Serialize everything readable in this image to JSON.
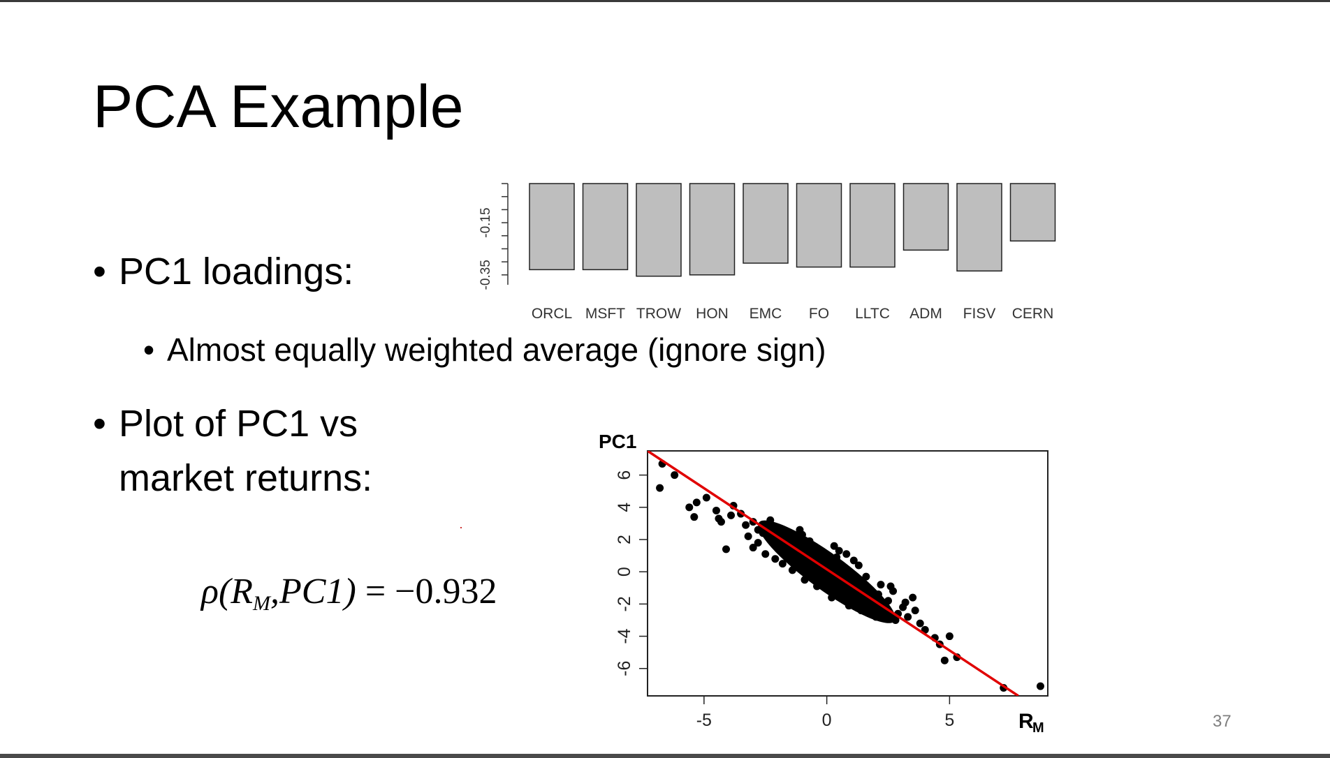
{
  "slide": {
    "title": "PCA Example",
    "bullet_loadings": "PC1 loadings:",
    "sub_bullet": "Almost equally weighted average (ignore sign)",
    "bullet_plot_line1": "Plot of PC1 vs",
    "bullet_plot_line2": "market returns:",
    "bullet_glyph": "•",
    "formula": {
      "rho": "ρ(R",
      "sub": "M",
      "rest": ",PC1)",
      "equals": " = −0.932"
    },
    "page_number": "37"
  },
  "chart_data": [
    {
      "type": "bar",
      "title": "",
      "categories": [
        "ORCL",
        "MSFT",
        "TROW",
        "HON",
        "EMC",
        "FO",
        "LLTC",
        "ADM",
        "FISV",
        "CERN"
      ],
      "values": [
        -0.33,
        -0.33,
        -0.355,
        -0.35,
        -0.305,
        -0.32,
        -0.32,
        -0.255,
        -0.335,
        -0.22
      ],
      "ytick_labels": [
        "-0.15",
        "-0.35"
      ],
      "ylim": [
        -0.42,
        0.0
      ],
      "bar_color": "#bebebe"
    },
    {
      "type": "scatter",
      "xlabel": "R",
      "xlabel_sub": "M",
      "ylabel": "PC1",
      "xticks": [
        "-5",
        "0",
        "5"
      ],
      "yticks": [
        "-6",
        "-4",
        "-2",
        "0",
        "2",
        "4",
        "6"
      ],
      "xlim": [
        -7.3,
        9.0
      ],
      "ylim": [
        -7.7,
        7.5
      ],
      "point_color": "#000000",
      "fit_line": {
        "color": "#e00000",
        "x": [
          -7.3,
          7.8
        ],
        "y": [
          7.5,
          -7.7
        ]
      },
      "points": [
        [
          -6.7,
          6.7
        ],
        [
          -6.8,
          5.2
        ],
        [
          -6.2,
          6.0
        ],
        [
          -5.6,
          4.0
        ],
        [
          -5.3,
          4.3
        ],
        [
          -5.4,
          3.4
        ],
        [
          -4.9,
          4.6
        ],
        [
          -4.5,
          3.8
        ],
        [
          -4.3,
          3.1
        ],
        [
          -3.9,
          3.5
        ],
        [
          -4.4,
          3.3
        ],
        [
          -3.8,
          4.1
        ],
        [
          -4.1,
          1.4
        ],
        [
          -3.5,
          3.6
        ],
        [
          -3.3,
          2.9
        ],
        [
          -3.2,
          2.2
        ],
        [
          -3.0,
          3.1
        ],
        [
          -2.8,
          2.6
        ],
        [
          -2.6,
          2.4
        ],
        [
          -2.3,
          3.2
        ],
        [
          -2.1,
          2.0
        ],
        [
          -1.9,
          2.5
        ],
        [
          -1.7,
          1.6
        ],
        [
          -2.5,
          1.1
        ],
        [
          -2.1,
          0.8
        ],
        [
          -1.5,
          2.2
        ],
        [
          -1.2,
          1.0
        ],
        [
          -1.3,
          1.8
        ],
        [
          -1.0,
          2.3
        ],
        [
          -0.8,
          0.4
        ],
        [
          -0.6,
          1.5
        ],
        [
          -0.5,
          0.6
        ],
        [
          -0.3,
          1.2
        ],
        [
          -0.2,
          -0.2
        ],
        [
          0.0,
          0.8
        ],
        [
          0.1,
          0.2
        ],
        [
          0.3,
          -0.5
        ],
        [
          0.4,
          0.9
        ],
        [
          0.6,
          -0.2
        ],
        [
          0.7,
          -1.0
        ],
        [
          0.9,
          -0.4
        ],
        [
          1.0,
          -1.4
        ],
        [
          1.2,
          -0.8
        ],
        [
          1.3,
          0.4
        ],
        [
          1.5,
          -1.6
        ],
        [
          1.7,
          -1.1
        ],
        [
          1.9,
          -2.0
        ],
        [
          2.1,
          -1.4
        ],
        [
          2.3,
          -2.3
        ],
        [
          2.5,
          -1.8
        ],
        [
          2.7,
          -1.2
        ],
        [
          2.9,
          -2.6
        ],
        [
          3.1,
          -2.2
        ],
        [
          3.3,
          -2.8
        ],
        [
          3.6,
          -2.4
        ],
        [
          3.8,
          -3.2
        ],
        [
          2.6,
          -0.9
        ],
        [
          3.2,
          -1.9
        ],
        [
          4.0,
          -3.6
        ],
        [
          4.4,
          -4.1
        ],
        [
          4.6,
          -4.5
        ],
        [
          5.0,
          -4.0
        ],
        [
          4.8,
          -5.5
        ],
        [
          5.3,
          -5.3
        ],
        [
          7.2,
          -7.2
        ],
        [
          8.7,
          -7.1
        ],
        [
          -0.9,
          -0.5
        ],
        [
          -1.8,
          0.5
        ],
        [
          0.5,
          1.3
        ],
        [
          1.1,
          0.7
        ],
        [
          -0.4,
          -0.9
        ],
        [
          0.2,
          -1.6
        ],
        [
          1.6,
          -0.3
        ],
        [
          -1.4,
          0.1
        ],
        [
          2.0,
          -2.8
        ],
        [
          -0.7,
          1.9
        ],
        [
          0.8,
          1.1
        ],
        [
          -2.8,
          1.8
        ],
        [
          -3.0,
          1.5
        ],
        [
          1.4,
          -2.4
        ],
        [
          2.8,
          -3.0
        ],
        [
          -1.1,
          2.6
        ],
        [
          0.0,
          -0.6
        ],
        [
          0.3,
          1.6
        ],
        [
          -2.4,
          2.8
        ],
        [
          -1.6,
          1.2
        ],
        [
          2.2,
          -0.8
        ],
        [
          -0.1,
          0.1
        ],
        [
          0.9,
          -2.1
        ],
        [
          3.5,
          -1.6
        ]
      ]
    }
  ]
}
